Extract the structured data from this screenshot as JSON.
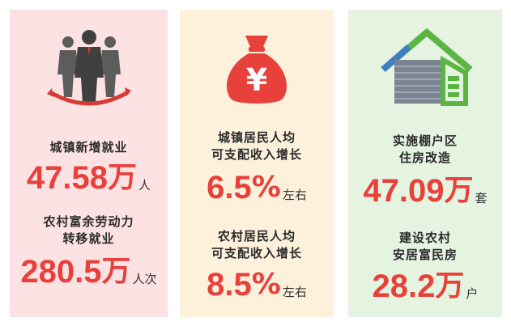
{
  "colors": {
    "panel_left_bg": "#fde2e3",
    "panel_middle_bg": "#fdf1dc",
    "panel_right_bg": "#e5f3e1",
    "number_red": "#e8403b",
    "label_dark": "#2b2b2b"
  },
  "panels": [
    {
      "icon": "workers-group-icon",
      "stats": [
        {
          "label_lines": [
            "城镇新增就业"
          ],
          "number": "47.58",
          "unit": "万",
          "suffix": "人"
        },
        {
          "label_lines": [
            "农村富余劳动力",
            "转移就业"
          ],
          "number": "280.5",
          "unit": "万",
          "suffix": "人次"
        }
      ]
    },
    {
      "icon": "money-bag-yuan-icon",
      "icon_text": "¥",
      "stats": [
        {
          "label_lines": [
            "城镇居民人均",
            "可支配收入增长"
          ],
          "number": "6.5",
          "unit": "%",
          "suffix": "左右"
        },
        {
          "label_lines": [
            "农村居民人均",
            "可支配收入增长"
          ],
          "number": "8.5",
          "unit": "%",
          "suffix": "左右"
        }
      ]
    },
    {
      "icon": "house-icon",
      "stats": [
        {
          "label_lines": [
            "实施棚户区",
            "住房改造"
          ],
          "number": "47.09",
          "unit": "万",
          "suffix": "套"
        },
        {
          "label_lines": [
            "建设农村",
            "安居富民房"
          ],
          "number": "28.2",
          "unit": "万",
          "suffix": "户"
        }
      ]
    }
  ]
}
